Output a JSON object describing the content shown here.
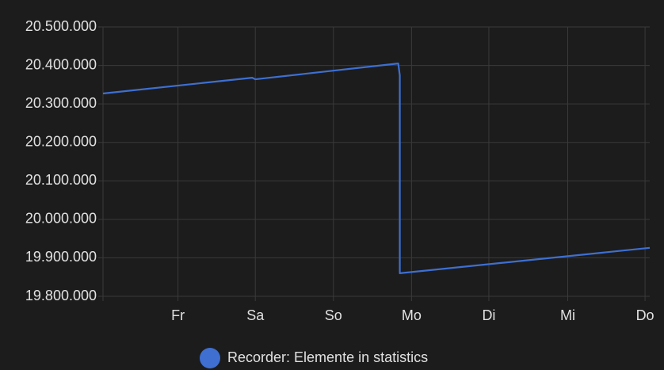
{
  "chart_data": {
    "type": "line",
    "x": [
      0,
      1.91,
      1.95,
      3.78,
      3.8,
      3.8,
      7.0
    ],
    "series": [
      {
        "name": "Recorder: Elemente in statistics",
        "color": "#3e6fd1",
        "values": [
          20327000,
          20368000,
          20364000,
          20405000,
          20374000,
          19860000,
          19926000
        ]
      }
    ],
    "xlim": [
      0,
      7
    ],
    "xticks": [
      {
        "value": 0.96,
        "label": "Fr"
      },
      {
        "value": 1.95,
        "label": "Sa"
      },
      {
        "value": 2.95,
        "label": "So"
      },
      {
        "value": 3.95,
        "label": "Mo"
      },
      {
        "value": 4.94,
        "label": "Di"
      },
      {
        "value": 5.95,
        "label": "Mi"
      },
      {
        "value": 6.94,
        "label": "Do"
      }
    ],
    "ylim": [
      19800000,
      20500000
    ],
    "yticks": [
      {
        "value": 19800000,
        "label": "19.800.000"
      },
      {
        "value": 19900000,
        "label": "19.900.000"
      },
      {
        "value": 20000000,
        "label": "20.000.000"
      },
      {
        "value": 20100000,
        "label": "20.100.000"
      },
      {
        "value": 20200000,
        "label": "20.200.000"
      },
      {
        "value": 20300000,
        "label": "20.300.000"
      },
      {
        "value": 20400000,
        "label": "20.400.000"
      },
      {
        "value": 20500000,
        "label": "20.500.000"
      }
    ],
    "grid": true,
    "legend": "bottom"
  }
}
